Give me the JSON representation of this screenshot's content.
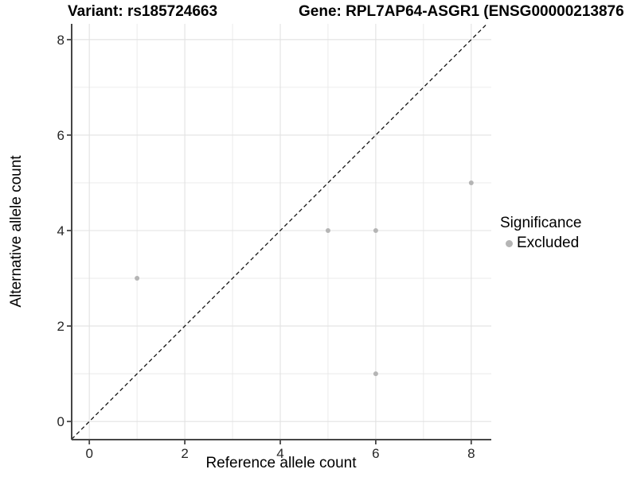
{
  "chart_data": {
    "type": "scatter",
    "title_left": "Variant: rs185724663",
    "title_right": "Gene: RPL7AP64-ASGR1 (ENSG00000213876",
    "xlabel": "Reference allele count",
    "ylabel": "Alternative allele count",
    "xticks": [
      0,
      2,
      4,
      6,
      8
    ],
    "yticks": [
      0,
      2,
      4,
      6,
      8
    ],
    "xlim": [
      -0.37,
      8.42
    ],
    "ylim": [
      -0.38,
      8.33
    ],
    "grid": {
      "on": true,
      "major": [
        0,
        2,
        4,
        6,
        8
      ],
      "minor": [
        1,
        3,
        5,
        7
      ]
    },
    "identity_line": {
      "equation": "y = x",
      "style": "dashed",
      "color": "#151515"
    },
    "legend": {
      "title": "Significance",
      "position": "right",
      "items": [
        {
          "label": "Excluded",
          "color": "#b5b5b5"
        }
      ]
    },
    "series": [
      {
        "name": "Excluded",
        "color": "#b5b5b5",
        "points": [
          {
            "x": 1,
            "y": 3
          },
          {
            "x": 5,
            "y": 4
          },
          {
            "x": 6,
            "y": 4
          },
          {
            "x": 6,
            "y": 1
          },
          {
            "x": 8,
            "y": 5
          }
        ]
      }
    ],
    "colors": {
      "background": "#ffffff",
      "axis_line": "#464646",
      "tick_label": "#262626",
      "grid_major": "#e2e2e2",
      "grid_minor": "#e9e9e9",
      "point": "#b5b5b5"
    }
  }
}
